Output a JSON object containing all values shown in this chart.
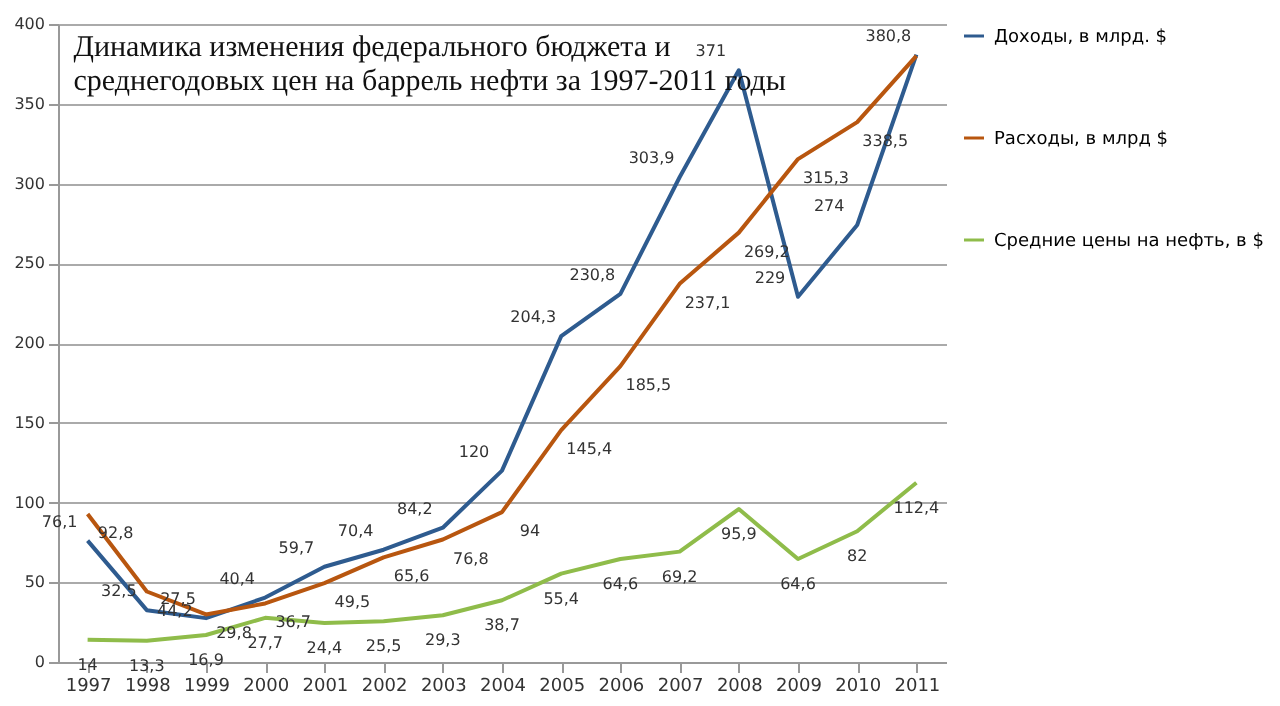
{
  "chart_data": {
    "type": "line",
    "title": "Динамика изменения федерального бюджета и среднегодовых цен на баррель нефти за 1997-2011 годы",
    "categories": [
      "1997",
      "1998",
      "1999",
      "2000",
      "2001",
      "2002",
      "2003",
      "2004",
      "2005",
      "2006",
      "2007",
      "2008",
      "2009",
      "2010",
      "2011"
    ],
    "series": [
      {
        "name": "Доходы, в млрд. $",
        "color": "#2e5b8f",
        "values": [
          76.1,
          32.5,
          27.5,
          40.4,
          59.7,
          70.4,
          84.2,
          120,
          204.3,
          230.8,
          303.9,
          371,
          229,
          274,
          380.8
        ],
        "value_labels": [
          "76,1",
          "32,5",
          "27,5",
          "40,4",
          "59,7",
          "70,4",
          "84,2",
          "120",
          "204,3",
          "230,8",
          "303,9",
          "371",
          "229",
          "274",
          "380,8"
        ]
      },
      {
        "name": "Расходы, в млрд $",
        "color": "#b8560f",
        "values": [
          92.8,
          44.2,
          29.8,
          36.7,
          49.5,
          65.6,
          76.8,
          94,
          145.4,
          185.5,
          237.1,
          269.2,
          315.3,
          338.5,
          380
        ],
        "value_labels": [
          "92,8",
          "44,2",
          "29,8",
          "36,7",
          "49,5",
          "65,6",
          "76,8",
          "94",
          "145,4",
          "185,5",
          "237,1",
          "269,2",
          "315,3",
          "338,5",
          null
        ]
      },
      {
        "name": "Средние цены на нефть, в $",
        "color": "#8fbc4a",
        "values": [
          14,
          13.3,
          16.9,
          27.7,
          24.4,
          25.5,
          29.3,
          38.7,
          55.4,
          64.6,
          69.2,
          95.9,
          64.6,
          82,
          112.4
        ],
        "value_labels": [
          "14",
          "13,3",
          "16,9",
          "27,7",
          "24,4",
          "25,5",
          "29,3",
          "38,7",
          "55,4",
          "64,6",
          "69,2",
          "95,9",
          "64,6",
          "82",
          "112,4"
        ]
      }
    ],
    "ylim": [
      0,
      400
    ],
    "yticks": [
      0,
      50,
      100,
      150,
      200,
      250,
      300,
      350,
      400
    ],
    "grid": "y",
    "legend": "right",
    "marker": "none",
    "line_style": "solid"
  }
}
